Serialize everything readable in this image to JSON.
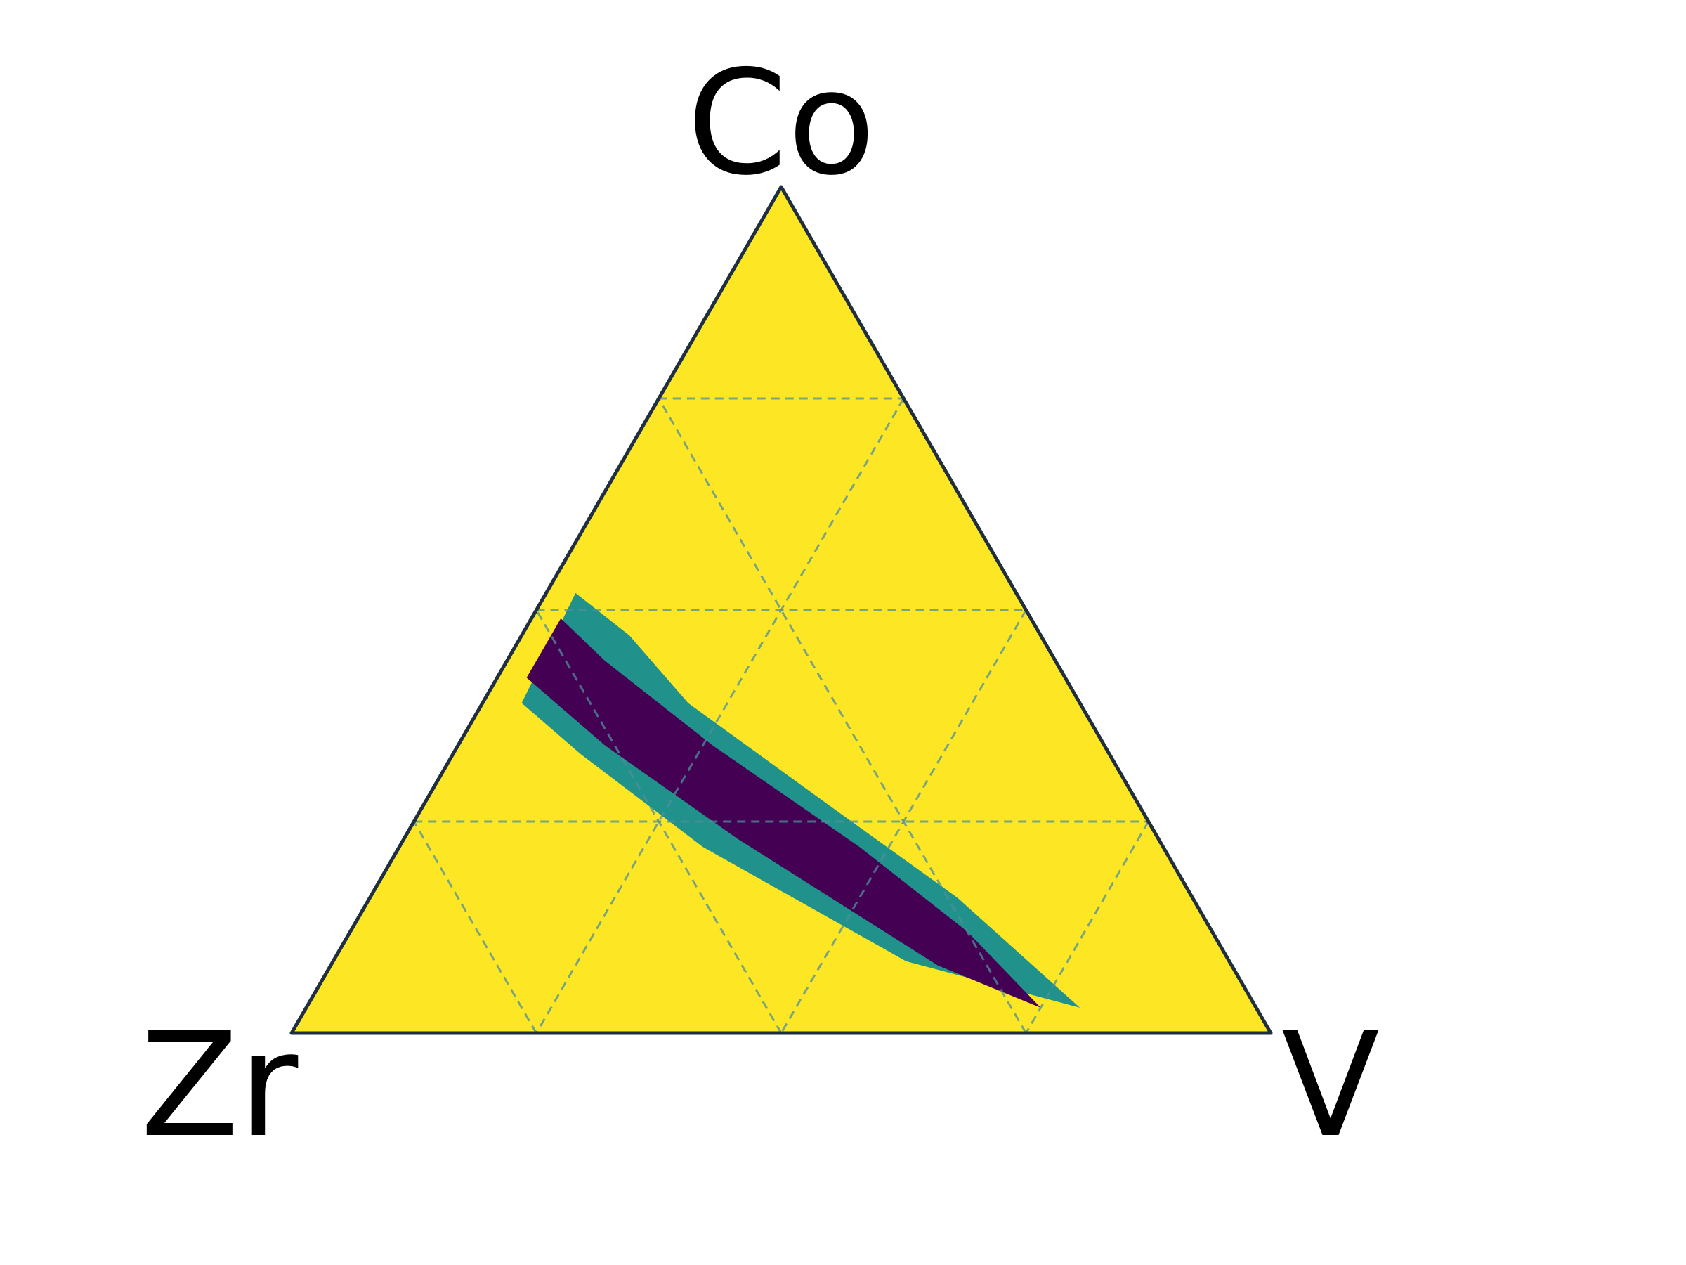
{
  "chart_data": {
    "type": "heatmap",
    "subtype": "ternary",
    "vertices": {
      "top": "Co",
      "left": "Zr",
      "right": "V"
    },
    "grid": true,
    "grid_fractions": [
      0.25,
      0.5,
      0.75
    ],
    "colors": {
      "background": "#fde725",
      "outer_band": "#21918c",
      "inner_band": "#440154",
      "frame": "#1f2f3f",
      "grid": "#4f8f9a"
    },
    "regions": [
      {
        "level": "outer",
        "color": "#21918c",
        "polygon": [
          {
            "Co": 0.52,
            "Zr": 0.45,
            "V": 0.03
          },
          {
            "Co": 0.47,
            "Zr": 0.42,
            "V": 0.11
          },
          {
            "Co": 0.39,
            "Zr": 0.4,
            "V": 0.21
          },
          {
            "Co": 0.26,
            "Zr": 0.31,
            "V": 0.43
          },
          {
            "Co": 0.16,
            "Zr": 0.24,
            "V": 0.6
          },
          {
            "Co": 0.03,
            "Zr": 0.18,
            "V": 0.79
          },
          {
            "Co": 0.085,
            "Zr": 0.33,
            "V": 0.585
          },
          {
            "Co": 0.22,
            "Zr": 0.47,
            "V": 0.31
          },
          {
            "Co": 0.33,
            "Zr": 0.54,
            "V": 0.13
          },
          {
            "Co": 0.39,
            "Zr": 0.57,
            "V": 0.04
          }
        ]
      },
      {
        "level": "inner",
        "color": "#440154",
        "polygon": [
          {
            "Co": 0.49,
            "Zr": 0.48,
            "V": 0.03
          },
          {
            "Co": 0.44,
            "Zr": 0.46,
            "V": 0.1
          },
          {
            "Co": 0.34,
            "Zr": 0.4,
            "V": 0.26
          },
          {
            "Co": 0.22,
            "Zr": 0.31,
            "V": 0.47
          },
          {
            "Co": 0.12,
            "Zr": 0.25,
            "V": 0.63
          },
          {
            "Co": 0.03,
            "Zr": 0.22,
            "V": 0.75
          },
          {
            "Co": 0.08,
            "Zr": 0.3,
            "V": 0.62
          },
          {
            "Co": 0.23,
            "Zr": 0.43,
            "V": 0.34
          },
          {
            "Co": 0.34,
            "Zr": 0.51,
            "V": 0.15
          },
          {
            "Co": 0.42,
            "Zr": 0.55,
            "V": 0.03
          }
        ]
      }
    ]
  }
}
